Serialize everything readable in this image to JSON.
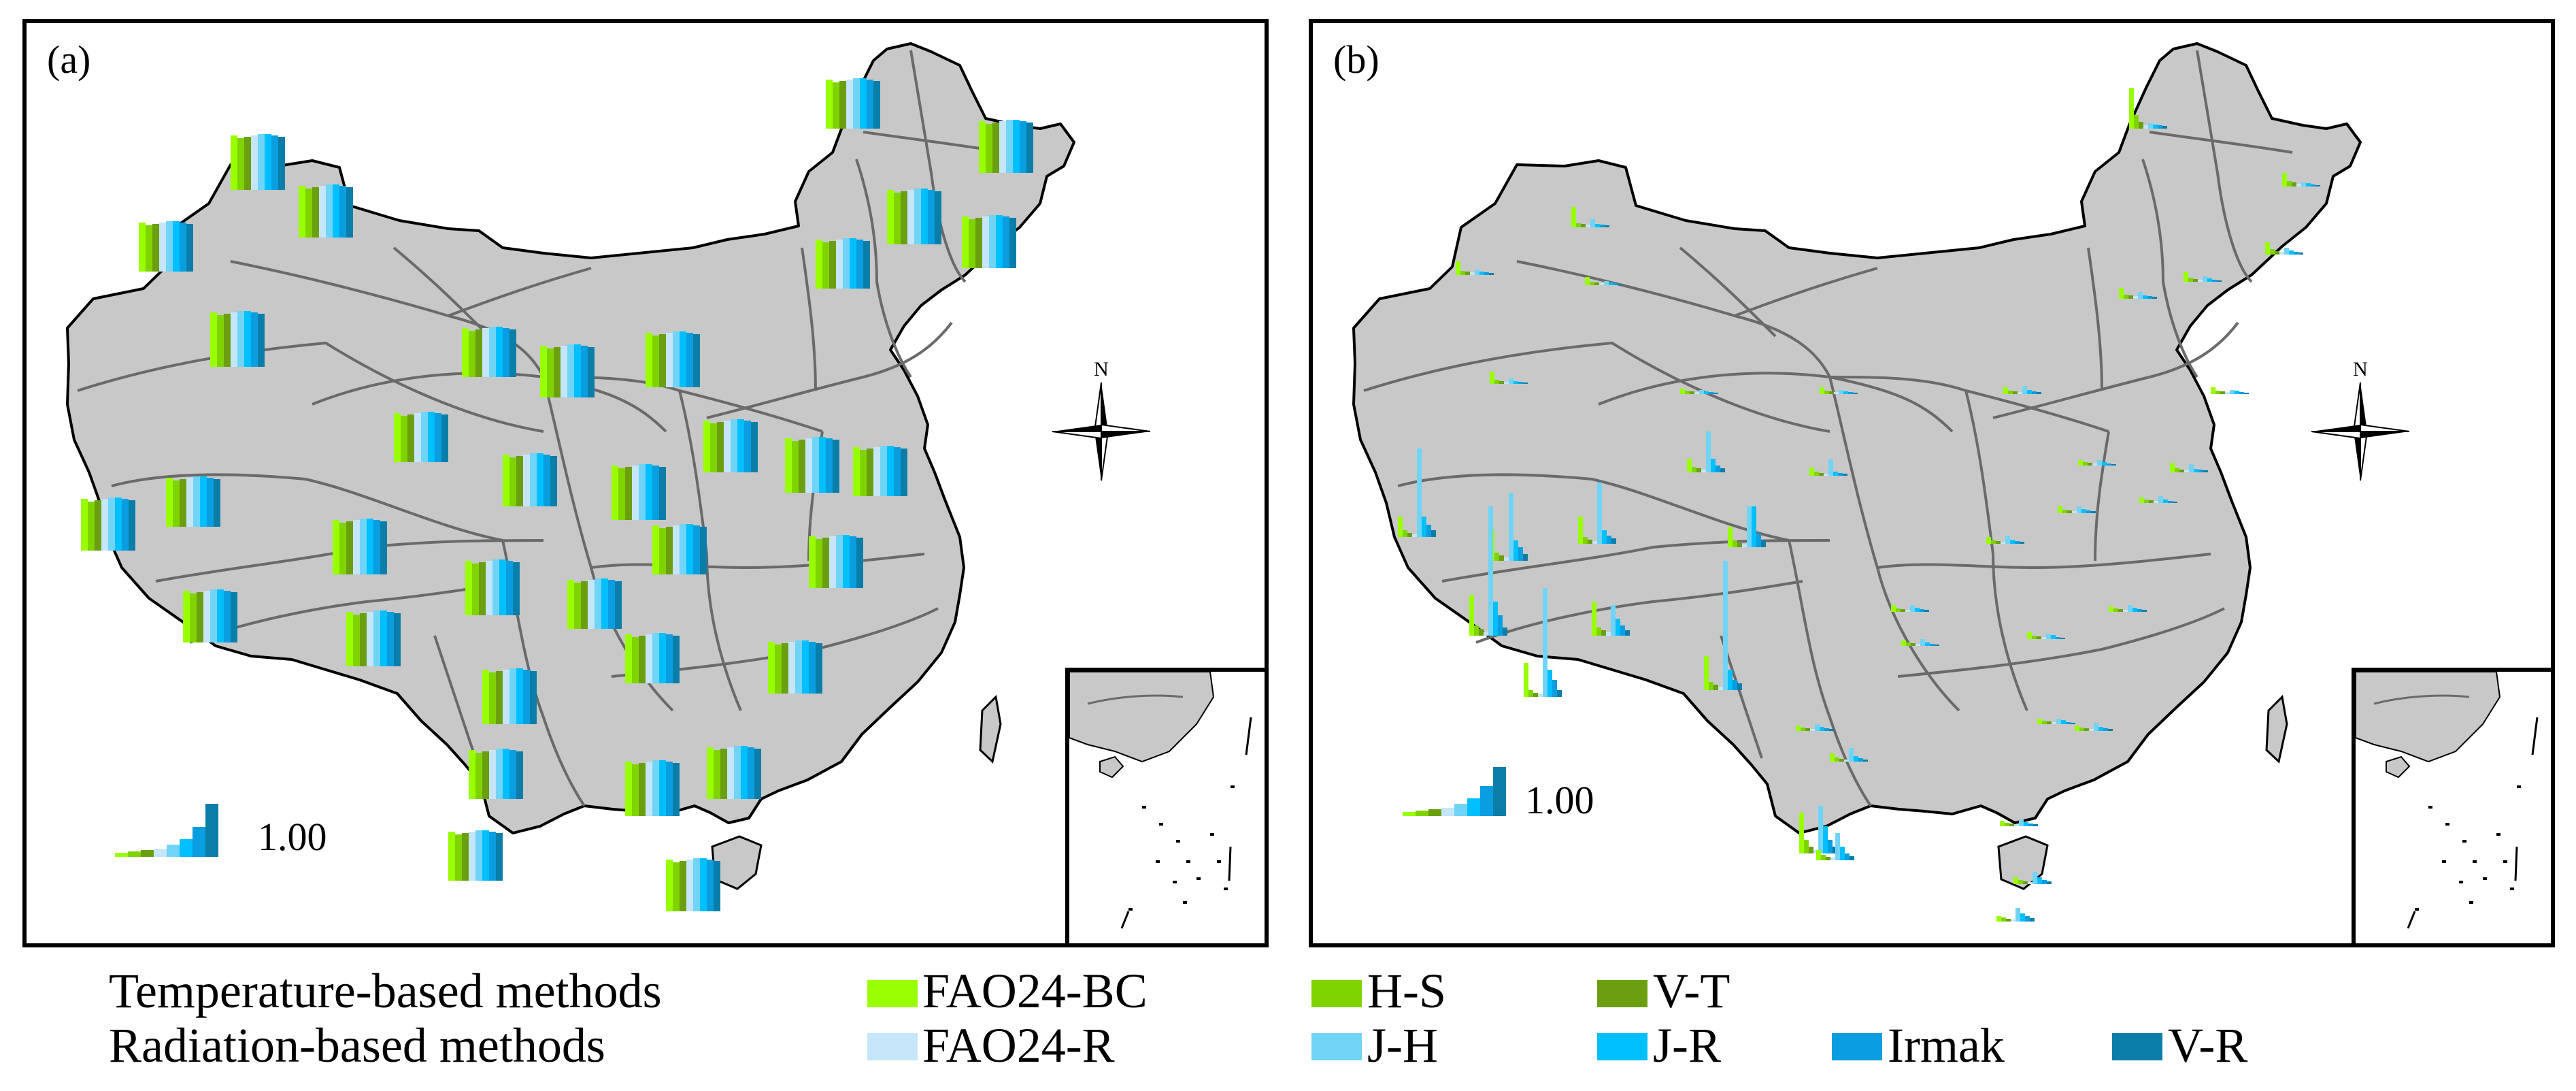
{
  "panels": [
    {
      "id": "a",
      "label": "(a)",
      "scale_label": "1.00"
    },
    {
      "id": "b",
      "label": "(b)",
      "scale_label": "1.00"
    }
  ],
  "compass": {
    "north": "N"
  },
  "legend": {
    "rows": [
      {
        "title": "Temperature-based methods",
        "items": [
          {
            "name": "FAO24-BC",
            "color": "#99ff00"
          },
          {
            "name": "H-S",
            "color": "#7fd400"
          },
          {
            "name": "V-T",
            "color": "#6b9f10"
          }
        ]
      },
      {
        "title": "Radiation-based methods",
        "items": [
          {
            "name": "FAO24-R",
            "color": "#c4e6f8"
          },
          {
            "name": "J-H",
            "color": "#70d4f7"
          },
          {
            "name": "J-R",
            "color": "#00bfff"
          },
          {
            "name": "Irmak",
            "color": "#0a9ee0"
          },
          {
            "name": "V-R",
            "color": "#0a7ea8"
          }
        ]
      }
    ]
  },
  "colors": {
    "land": "#c8c8c8",
    "boundary": "#6a6a6a",
    "coast": "#000000",
    "frame": "#000000"
  }
}
